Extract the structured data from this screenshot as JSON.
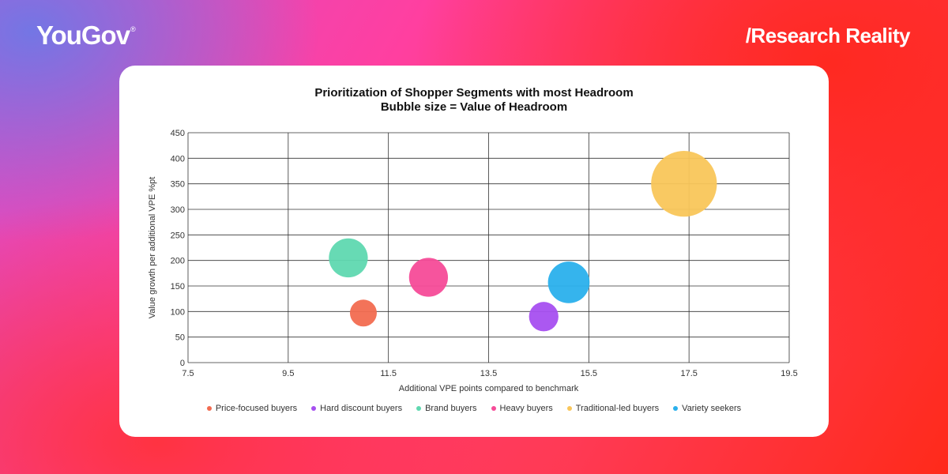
{
  "brand": {
    "logo": "YouGov",
    "registered": "®",
    "tagline": "/Research Reality"
  },
  "chart_data": {
    "type": "scatter",
    "title": "Prioritization of Shopper Segments with most Headroom",
    "subtitle": "Bubble size = Value of Headroom",
    "xlabel": "Additional VPE points compared to benchmark",
    "ylabel": "Value growth per additional VPE %pt",
    "xlim": [
      7.5,
      19.5
    ],
    "ylim": [
      0,
      450
    ],
    "xticks": [
      "7.5",
      "9.5",
      "11.5",
      "13.5",
      "15.5",
      "17.5",
      "19.5"
    ],
    "yticks": [
      "0",
      "50",
      "100",
      "150",
      "200",
      "250",
      "300",
      "350",
      "400",
      "450"
    ],
    "grid": true,
    "legend_position": "bottom",
    "series": [
      {
        "name": "Price-focused buyers",
        "color": "#f26b50",
        "x": 11.0,
        "y": 97,
        "size": 1.0
      },
      {
        "name": "Hard discount buyers",
        "color": "#a64ff0",
        "x": 14.6,
        "y": 90,
        "size": 1.2
      },
      {
        "name": "Brand buyers",
        "color": "#5fd8b0",
        "x": 10.7,
        "y": 205,
        "size": 2.1
      },
      {
        "name": "Heavy buyers",
        "color": "#f64b98",
        "x": 12.3,
        "y": 167,
        "size": 2.1
      },
      {
        "name": "Traditional-led buyers",
        "color": "#f9c65a",
        "x": 17.4,
        "y": 350,
        "size": 6.0
      },
      {
        "name": "Variety seekers",
        "color": "#2ab0ec",
        "x": 15.1,
        "y": 157,
        "size": 2.4
      }
    ]
  }
}
